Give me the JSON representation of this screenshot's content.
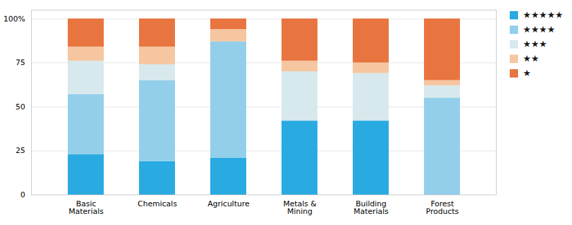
{
  "chart_data": {
    "type": "bar",
    "stacked": true,
    "categories": [
      "Basic\nMaterials",
      "Chemicals",
      "Agriculture",
      "Metals &\nMining",
      "Building\nMaterials",
      "Forest\nProducts"
    ],
    "series": [
      {
        "name": "★★★★★",
        "color": "#29ABE2",
        "values": [
          23,
          19,
          21,
          42,
          42,
          0
        ]
      },
      {
        "name": "★★★★",
        "color": "#93CFEA",
        "values": [
          34,
          46,
          66,
          0,
          0,
          55
        ]
      },
      {
        "name": "★★★",
        "color": "#D8E9EE",
        "values": [
          19,
          9,
          0,
          28,
          27,
          7
        ]
      },
      {
        "name": "★★",
        "color": "#F5C6A0",
        "values": [
          8,
          10,
          7,
          6,
          6,
          3
        ]
      },
      {
        "name": "★",
        "color": "#E87540",
        "values": [
          16,
          16,
          6,
          24,
          25,
          35
        ]
      }
    ],
    "ylim": [
      0,
      105
    ],
    "yticks": [
      0,
      25,
      50,
      75,
      {
        "value": 100,
        "label": "100%"
      }
    ],
    "grid": true,
    "legend": "upper right"
  }
}
